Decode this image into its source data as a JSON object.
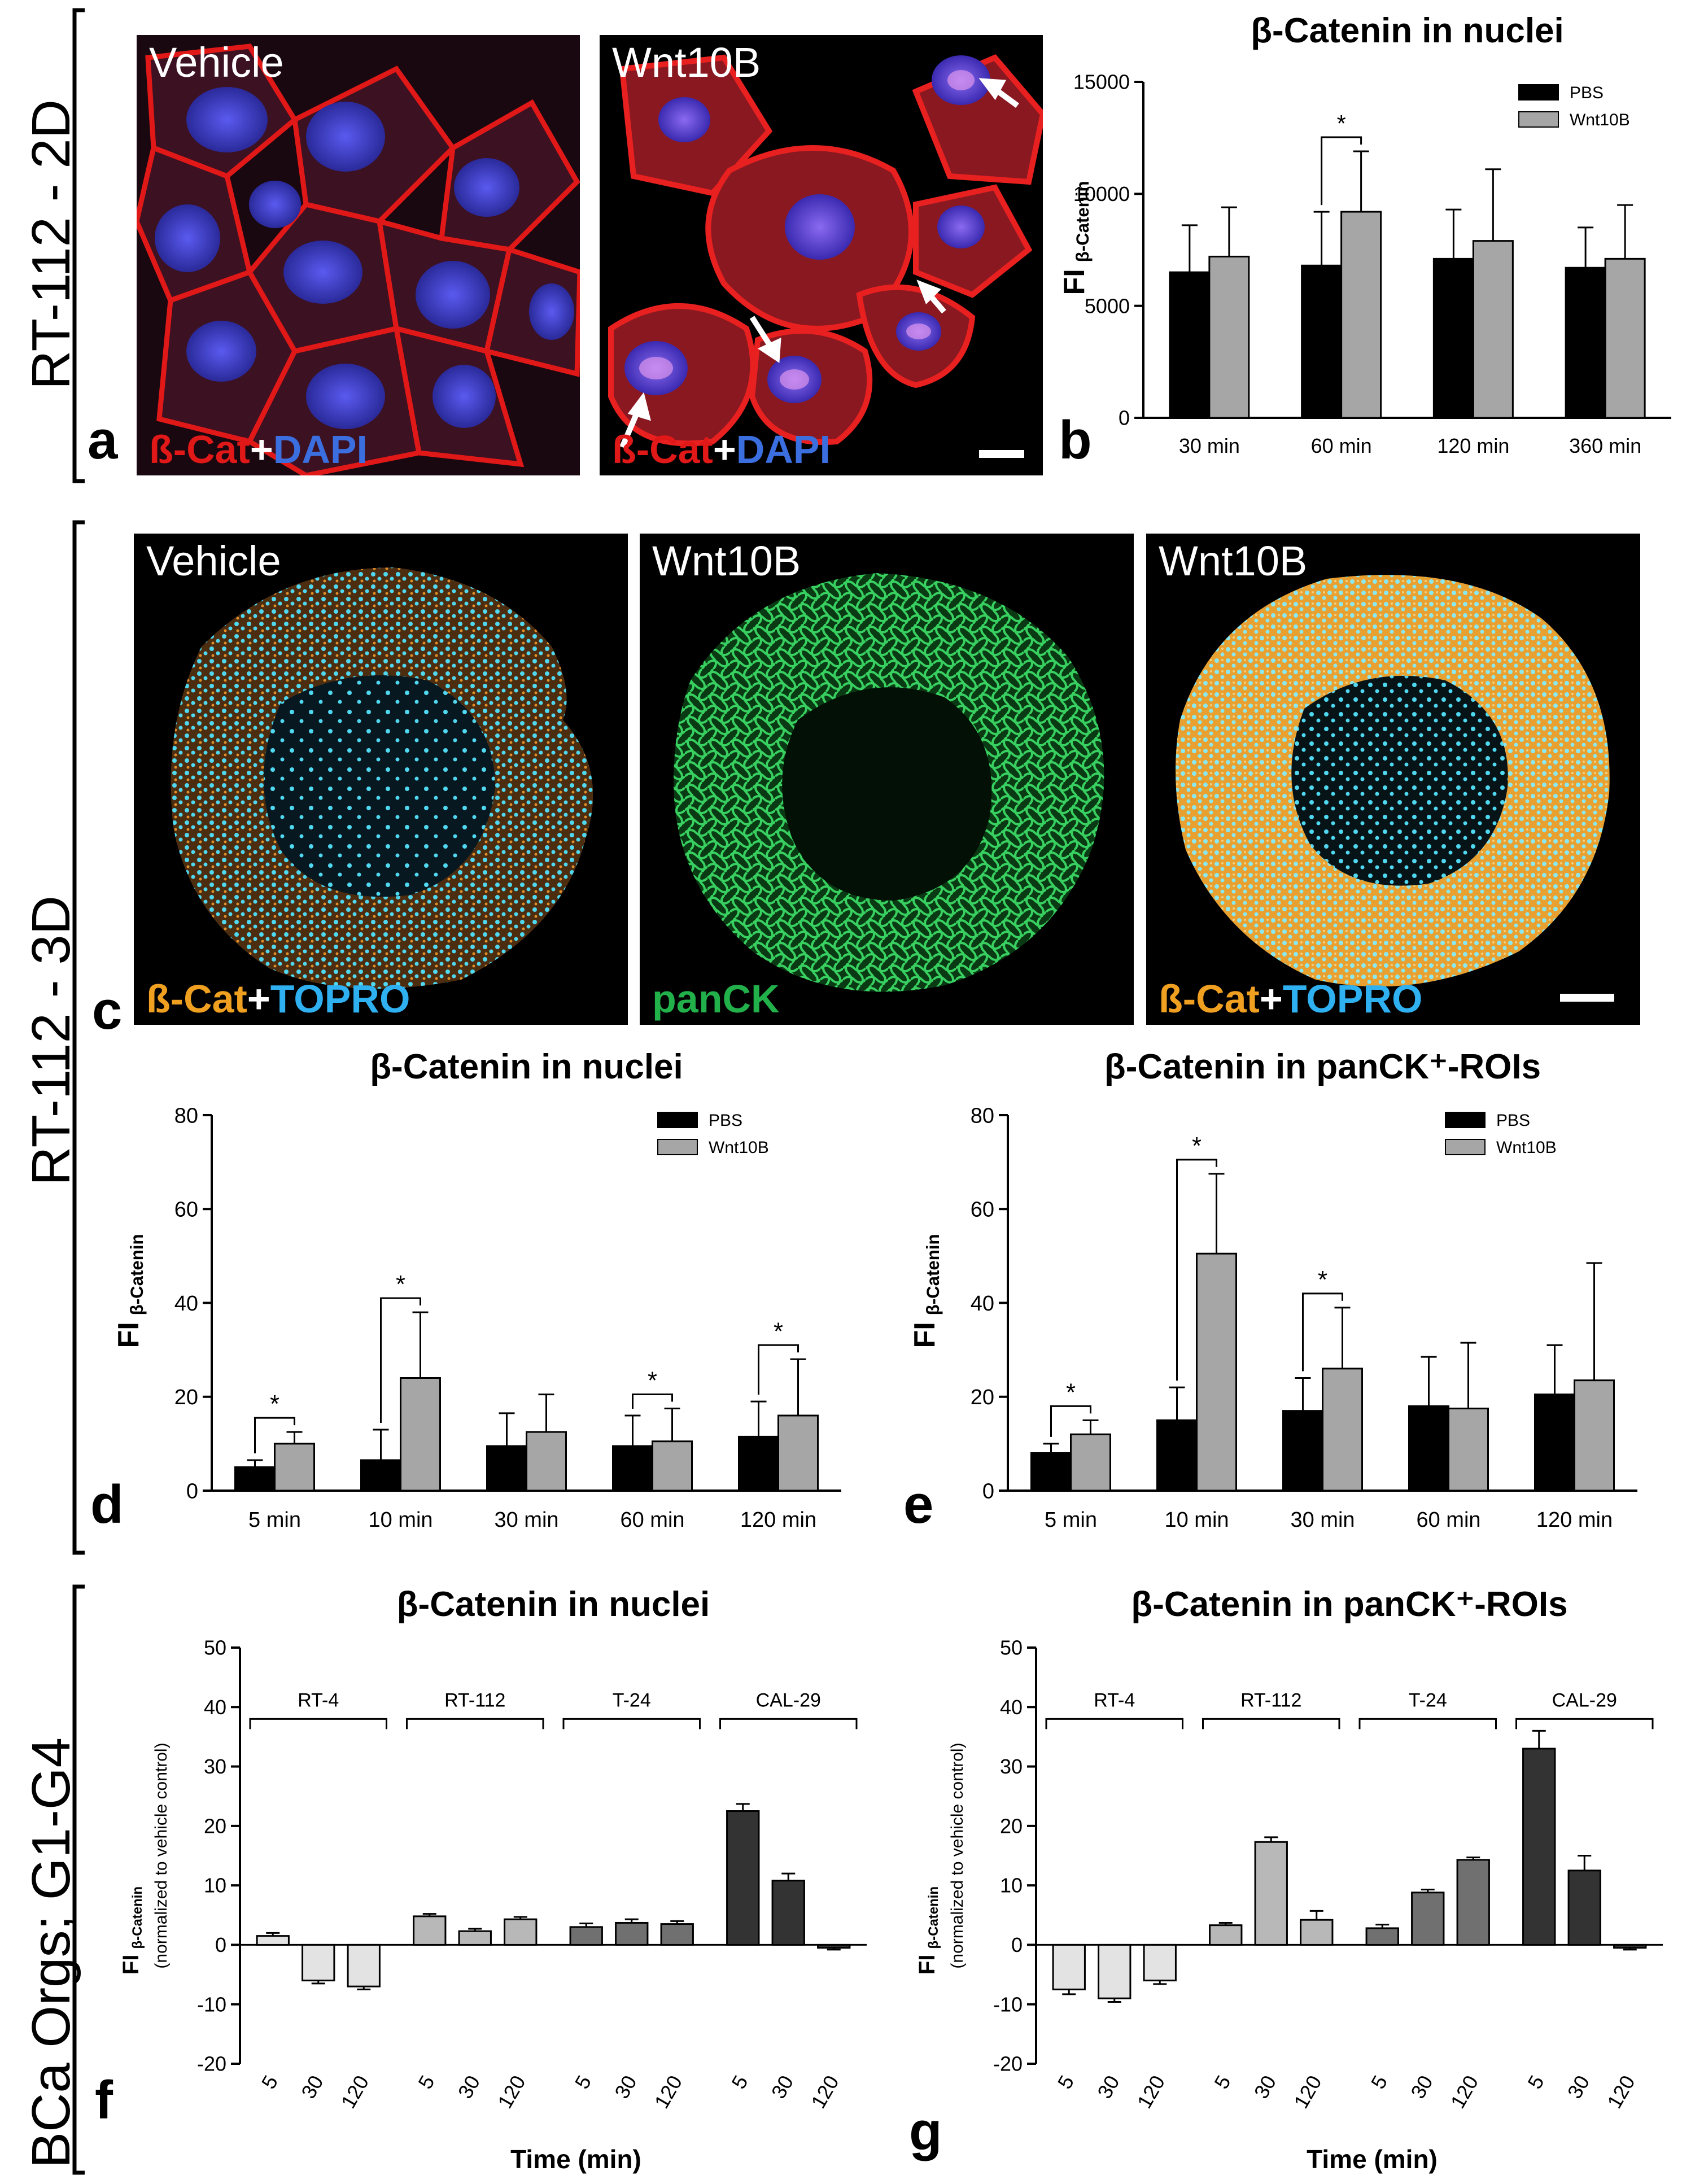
{
  "side_labels": {
    "top": "RT-112 - 2D",
    "middle": "RT-112 - 3D",
    "bottom": "BCa Orgs; G1-G4"
  },
  "panel_letters": {
    "a": "a",
    "b": "b",
    "c": "c",
    "d": "d",
    "e": "e",
    "f": "f",
    "g": "g"
  },
  "micrographs": {
    "a_vehicle": {
      "title": "Vehicle",
      "stain_1": "ß-Cat",
      "plus": "+",
      "stain_2": "DAPI"
    },
    "a_wnt": {
      "title": "Wnt10B",
      "stain_1": "ß-Cat",
      "plus": "+",
      "stain_2": "DAPI"
    },
    "c_vehicle": {
      "title": "Vehicle",
      "stain_1": "ß-Cat",
      "plus": "+",
      "stain_2": "TOPRO"
    },
    "c_panck": {
      "title": "Wnt10B",
      "stain_1": "panCK"
    },
    "c_wnt": {
      "title": "Wnt10B",
      "stain_1": "ß-Cat",
      "plus": "+",
      "stain_2": "TOPRO"
    }
  },
  "colors": {
    "pbs": "#000000",
    "wnt": "#a6a6a6",
    "nuc_blue": "#3b3bd8",
    "bcat_red": "#e01818",
    "bcat_orange": "#f0a020",
    "topro_cyan": "#3fd0f0",
    "panck_green": "#22b04a",
    "rt4": "#d9d9d9",
    "rt112": "#b3b3b3",
    "t24": "#6e6e6e",
    "cal29": "#333333"
  },
  "chart_data": [
    {
      "id": "b",
      "type": "bar",
      "title": "β-Catenin in nuclei",
      "ylabel_main": "FI",
      "ylabel_sub": "β-Catenin",
      "categories": [
        "30 min",
        "60 min",
        "120 min",
        "360 min"
      ],
      "ylim": [
        0,
        15000
      ],
      "yticks": [
        0,
        5000,
        10000,
        15000
      ],
      "series": [
        {
          "name": "PBS",
          "values": [
            6500,
            6800,
            7100,
            6700
          ],
          "errors": [
            2100,
            2400,
            2200,
            1800
          ]
        },
        {
          "name": "Wnt10B",
          "values": [
            7200,
            9200,
            7900,
            7100
          ],
          "errors": [
            2200,
            2700,
            3200,
            2400
          ]
        }
      ],
      "significance": [
        {
          "category": 1,
          "label": "*"
        }
      ],
      "legend": "top-right"
    },
    {
      "id": "d",
      "type": "bar",
      "title": "β-Catenin in nuclei",
      "ylabel_main": "FI",
      "ylabel_sub": "β-Catenin",
      "categories": [
        "5 min",
        "10 min",
        "30 min",
        "60 min",
        "120 min"
      ],
      "ylim": [
        0,
        80
      ],
      "yticks": [
        0,
        20,
        40,
        60,
        80
      ],
      "series": [
        {
          "name": "PBS",
          "values": [
            5,
            6.5,
            9.5,
            9.5,
            11.5
          ],
          "errors": [
            1.5,
            6.5,
            7,
            6.5,
            7.5
          ]
        },
        {
          "name": "Wnt10B",
          "values": [
            10,
            24,
            12.5,
            10.5,
            16
          ],
          "errors": [
            2.5,
            14,
            8,
            7,
            12
          ]
        }
      ],
      "significance": [
        {
          "category": 0,
          "label": "*"
        },
        {
          "category": 1,
          "label": "*"
        },
        {
          "category": 3,
          "label": "*"
        },
        {
          "category": 4,
          "label": "*"
        }
      ],
      "legend": "top-right"
    },
    {
      "id": "e",
      "type": "bar",
      "title": "β-Catenin in panCK⁺-ROIs",
      "ylabel_main": "FI",
      "ylabel_sub": "β-Catenin",
      "categories": [
        "5 min",
        "10 min",
        "30 min",
        "60 min",
        "120 min"
      ],
      "ylim": [
        0,
        80
      ],
      "yticks": [
        0,
        20,
        40,
        60,
        80
      ],
      "series": [
        {
          "name": "PBS",
          "values": [
            8,
            15,
            17,
            18,
            20.5
          ],
          "errors": [
            2,
            7,
            7,
            10.5,
            10.5
          ]
        },
        {
          "name": "Wnt10B",
          "values": [
            12,
            50.5,
            26,
            17.5,
            23.5
          ],
          "errors": [
            3,
            17,
            13,
            14,
            25
          ]
        }
      ],
      "significance": [
        {
          "category": 0,
          "label": "*"
        },
        {
          "category": 1,
          "label": "*"
        },
        {
          "category": 2,
          "label": "*"
        }
      ],
      "legend": "top-right"
    },
    {
      "id": "f",
      "type": "bar",
      "title": "β-Catenin in nuclei",
      "ylabel_main": "FI",
      "ylabel_sub": "β-Catenin",
      "ylabel_note": "(normalized to vehicle control)",
      "xlabel": "Time (min)",
      "ylim": [
        -20,
        50
      ],
      "yticks": [
        -20,
        -10,
        0,
        10,
        20,
        30,
        40,
        50
      ],
      "groups": [
        {
          "name": "RT-4",
          "times": [
            "5",
            "30",
            "120"
          ],
          "values": [
            1.5,
            -6,
            -7
          ],
          "errors": [
            0.5,
            0.5,
            0.5
          ],
          "color": "#e3e3e3"
        },
        {
          "name": "RT-112",
          "times": [
            "5",
            "30",
            "120"
          ],
          "values": [
            4.8,
            2.3,
            4.3
          ],
          "errors": [
            0.4,
            0.4,
            0.4
          ],
          "color": "#b8b8b8"
        },
        {
          "name": "T-24",
          "times": [
            "5",
            "30",
            "120"
          ],
          "values": [
            3,
            3.7,
            3.5
          ],
          "errors": [
            0.6,
            0.6,
            0.5
          ],
          "color": "#707070"
        },
        {
          "name": "CAL-29",
          "times": [
            "5",
            "30",
            "120"
          ],
          "values": [
            22.5,
            10.8,
            -0.5
          ],
          "errors": [
            1.2,
            1.2,
            0.3
          ],
          "color": "#333333"
        }
      ]
    },
    {
      "id": "g",
      "type": "bar",
      "title": "β-Catenin in panCK⁺-ROIs",
      "ylabel_main": "FI",
      "ylabel_sub": "β-Catenin",
      "ylabel_note": "(normalized to vehicle control)",
      "xlabel": "Time (min)",
      "ylim": [
        -20,
        50
      ],
      "yticks": [
        -20,
        -10,
        0,
        10,
        20,
        30,
        40,
        50
      ],
      "groups": [
        {
          "name": "RT-4",
          "times": [
            "5",
            "30",
            "120"
          ],
          "values": [
            -7.5,
            -9,
            -6
          ],
          "errors": [
            0.8,
            0.6,
            0.6
          ],
          "color": "#e3e3e3"
        },
        {
          "name": "RT-112",
          "times": [
            "5",
            "30",
            "120"
          ],
          "values": [
            3.3,
            17.3,
            4.2
          ],
          "errors": [
            0.4,
            0.8,
            1.5
          ],
          "color": "#b8b8b8"
        },
        {
          "name": "T-24",
          "times": [
            "5",
            "30",
            "120"
          ],
          "values": [
            2.8,
            8.8,
            14.3
          ],
          "errors": [
            0.6,
            0.5,
            0.4
          ],
          "color": "#707070"
        },
        {
          "name": "CAL-29",
          "times": [
            "5",
            "30",
            "120"
          ],
          "values": [
            33,
            12.5,
            -0.5
          ],
          "errors": [
            3,
            2.5,
            0.3
          ],
          "color": "#333333"
        }
      ]
    }
  ]
}
